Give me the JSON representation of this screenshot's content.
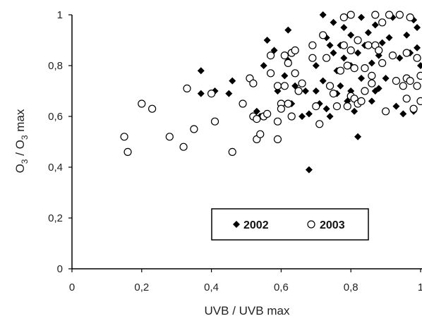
{
  "chart_data": {
    "type": "scatter",
    "xlabel": "UVB / UVB max",
    "ylabel": {
      "base": "O",
      "sub": "3",
      "middle": " / O",
      "sub2": "3",
      "tail": " max"
    },
    "xlim": [
      0,
      1
    ],
    "ylim": [
      0,
      1
    ],
    "x_ticks": [
      "0",
      "0,2",
      "0,4",
      "0,6",
      "0,8",
      "1"
    ],
    "y_ticks": [
      "0",
      "0,2",
      "0,4",
      "0,6",
      "0,8",
      "1"
    ],
    "grid": false,
    "legend_position": "lower-right",
    "series": [
      {
        "name": "2002",
        "marker": "filled-diamond",
        "color": "#000000",
        "points": [
          [
            0.37,
            0.78
          ],
          [
            0.37,
            0.69
          ],
          [
            0.41,
            0.7
          ],
          [
            0.45,
            0.69
          ],
          [
            0.46,
            0.74
          ],
          [
            0.51,
            0.75
          ],
          [
            0.53,
            0.62
          ],
          [
            0.54,
            0.6
          ],
          [
            0.55,
            0.8
          ],
          [
            0.56,
            0.9
          ],
          [
            0.58,
            0.86
          ],
          [
            0.59,
            0.7
          ],
          [
            0.61,
            0.76
          ],
          [
            0.62,
            0.94
          ],
          [
            0.62,
            0.82
          ],
          [
            0.63,
            0.65
          ],
          [
            0.64,
            0.72
          ],
          [
            0.66,
            0.6
          ],
          [
            0.67,
            0.7
          ],
          [
            0.68,
            0.39
          ],
          [
            0.68,
            0.61
          ],
          [
            0.7,
            0.8
          ],
          [
            0.7,
            0.7
          ],
          [
            0.71,
            0.65
          ],
          [
            0.72,
            1.0
          ],
          [
            0.72,
            0.74
          ],
          [
            0.73,
            0.63
          ],
          [
            0.73,
            0.91
          ],
          [
            0.74,
            0.88
          ],
          [
            0.74,
            0.6
          ],
          [
            0.75,
            0.97
          ],
          [
            0.75,
            0.85
          ],
          [
            0.76,
            0.78
          ],
          [
            0.77,
            0.88
          ],
          [
            0.77,
            0.72
          ],
          [
            0.78,
            0.95
          ],
          [
            0.78,
            0.83
          ],
          [
            0.79,
            0.66
          ],
          [
            0.8,
            0.92
          ],
          [
            0.8,
            0.8
          ],
          [
            0.8,
            0.7
          ],
          [
            0.81,
            0.62
          ],
          [
            0.82,
            0.52
          ],
          [
            0.82,
            0.85
          ],
          [
            0.83,
            0.99
          ],
          [
            0.83,
            0.75
          ],
          [
            0.84,
            0.88
          ],
          [
            0.85,
            0.93
          ],
          [
            0.86,
            0.81
          ],
          [
            0.86,
            0.66
          ],
          [
            0.87,
            0.96
          ],
          [
            0.88,
            0.71
          ],
          [
            0.88,
            0.84
          ],
          [
            0.89,
            0.89
          ],
          [
            0.9,
            0.75
          ],
          [
            0.91,
            0.91
          ],
          [
            0.92,
            0.99
          ],
          [
            0.93,
            0.64
          ],
          [
            0.94,
            0.83
          ],
          [
            0.95,
            0.61
          ],
          [
            0.96,
            0.92
          ],
          [
            0.96,
            0.75
          ],
          [
            0.97,
            0.85
          ],
          [
            0.98,
            0.98
          ],
          [
            0.99,
            0.87
          ],
          [
            0.99,
            0.95
          ],
          [
            0.98,
            0.62
          ],
          [
            1.0,
            0.8
          ],
          [
            0.76,
            0.69
          ],
          [
            0.87,
            0.7
          ]
        ]
      },
      {
        "name": "2003",
        "marker": "open-circle",
        "color": "#000000",
        "points": [
          [
            0.15,
            0.52
          ],
          [
            0.16,
            0.46
          ],
          [
            0.2,
            0.65
          ],
          [
            0.23,
            0.63
          ],
          [
            0.28,
            0.52
          ],
          [
            0.32,
            0.48
          ],
          [
            0.33,
            0.71
          ],
          [
            0.35,
            0.55
          ],
          [
            0.4,
            0.69
          ],
          [
            0.41,
            0.58
          ],
          [
            0.46,
            0.46
          ],
          [
            0.49,
            0.65
          ],
          [
            0.51,
            0.75
          ],
          [
            0.52,
            0.73
          ],
          [
            0.52,
            0.6
          ],
          [
            0.53,
            0.51
          ],
          [
            0.53,
            0.59
          ],
          [
            0.54,
            0.53
          ],
          [
            0.55,
            0.6
          ],
          [
            0.56,
            0.61
          ],
          [
            0.57,
            0.84
          ],
          [
            0.57,
            0.77
          ],
          [
            0.59,
            0.72
          ],
          [
            0.59,
            0.58
          ],
          [
            0.59,
            0.51
          ],
          [
            0.6,
            0.65
          ],
          [
            0.6,
            0.63
          ],
          [
            0.61,
            0.84
          ],
          [
            0.61,
            0.72
          ],
          [
            0.62,
            0.81
          ],
          [
            0.62,
            0.65
          ],
          [
            0.63,
            0.6
          ],
          [
            0.63,
            0.85
          ],
          [
            0.64,
            0.77
          ],
          [
            0.64,
            0.86
          ],
          [
            0.65,
            0.7
          ],
          [
            0.66,
            0.73
          ],
          [
            0.69,
            0.88
          ],
          [
            0.69,
            0.83
          ],
          [
            0.7,
            0.64
          ],
          [
            0.71,
            0.57
          ],
          [
            0.72,
            0.92
          ],
          [
            0.73,
            0.83
          ],
          [
            0.74,
            0.72
          ],
          [
            0.75,
            0.69
          ],
          [
            0.76,
            0.64
          ],
          [
            0.77,
            0.78
          ],
          [
            0.78,
            0.99
          ],
          [
            0.78,
            0.88
          ],
          [
            0.79,
            0.8
          ],
          [
            0.79,
            0.64
          ],
          [
            0.8,
            1.0
          ],
          [
            0.8,
            0.86
          ],
          [
            0.8,
            0.68
          ],
          [
            0.81,
            0.67
          ],
          [
            0.81,
            0.79
          ],
          [
            0.82,
            0.9
          ],
          [
            0.82,
            0.65
          ],
          [
            0.84,
            0.7
          ],
          [
            0.84,
            0.79
          ],
          [
            0.85,
            0.88
          ],
          [
            0.86,
            0.73
          ],
          [
            0.86,
            0.76
          ],
          [
            0.87,
            1.0
          ],
          [
            0.87,
            0.88
          ],
          [
            0.88,
            0.86
          ],
          [
            0.89,
            0.81
          ],
          [
            0.89,
            0.97
          ],
          [
            0.9,
            0.62
          ],
          [
            0.91,
            1.0
          ],
          [
            0.92,
            0.84
          ],
          [
            0.93,
            0.74
          ],
          [
            0.94,
            1.0
          ],
          [
            0.95,
            0.72
          ],
          [
            0.96,
            0.75
          ],
          [
            0.96,
            0.85
          ],
          [
            0.97,
            0.99
          ],
          [
            0.97,
            0.74
          ],
          [
            0.98,
            0.63
          ],
          [
            0.99,
            0.72
          ],
          [
            0.99,
            0.83
          ],
          [
            1.0,
            0.66
          ],
          [
            1.0,
            0.76
          ],
          [
            0.96,
            0.67
          ],
          [
            0.83,
            0.66
          ]
        ]
      }
    ],
    "legend": {
      "items": [
        "2002",
        "2003"
      ]
    }
  }
}
